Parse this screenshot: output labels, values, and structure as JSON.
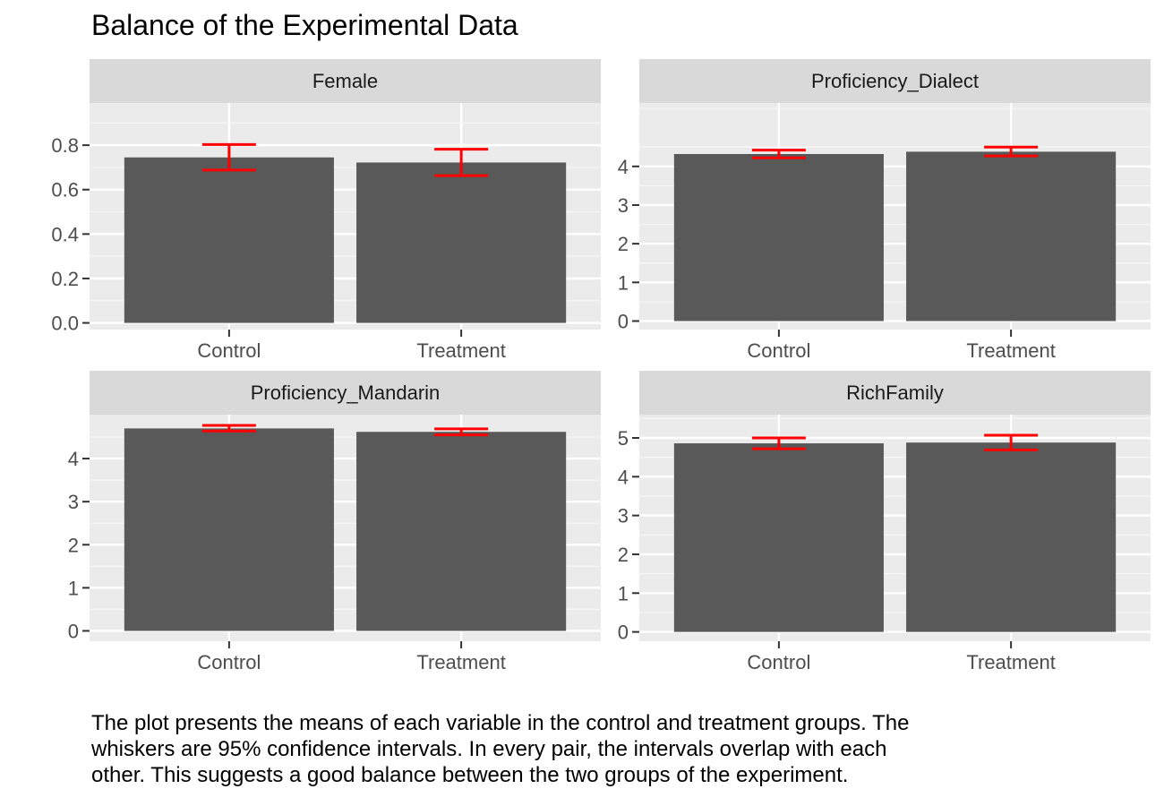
{
  "title": "Balance of the Experimental Data",
  "caption": [
    "The plot presents the means of each variable in the control and treatment groups. The",
    "whiskers are 95% confidence intervals. In every pair, the intervals overlap with each",
    "other. This suggests a good balance between the two groups of the experiment."
  ],
  "colors": {
    "bar": "#595959",
    "errorbar": "#ff0000",
    "panel": "#ebebeb",
    "strip": "#d9d9d9",
    "grid": "#ffffff"
  },
  "chart_data": [
    {
      "type": "bar",
      "panel": "Female",
      "categories": [
        "Control",
        "Treatment"
      ],
      "values": [
        0.745,
        0.722
      ],
      "ci_low": [
        0.688,
        0.663
      ],
      "ci_high": [
        0.803,
        0.782
      ],
      "ylim": [
        -0.03,
        0.99
      ],
      "yticks": [
        0,
        0.2,
        0.4,
        0.6,
        0.8
      ],
      "ytick_labels": [
        "0.0",
        "0.2",
        "0.4",
        "0.6",
        "0.8"
      ]
    },
    {
      "type": "bar",
      "panel": "Proficiency_Dialect",
      "categories": [
        "Control",
        "Treatment"
      ],
      "values": [
        4.32,
        4.38
      ],
      "ci_low": [
        4.22,
        4.27
      ],
      "ci_high": [
        4.42,
        4.5
      ],
      "ylim": [
        -0.22,
        5.64
      ],
      "yticks": [
        0,
        1,
        2,
        3,
        4
      ],
      "ytick_labels": [
        "0",
        "1",
        "2",
        "3",
        "4"
      ]
    },
    {
      "type": "bar",
      "panel": "Proficiency_Mandarin",
      "categories": [
        "Control",
        "Treatment"
      ],
      "values": [
        4.7,
        4.62
      ],
      "ci_low": [
        4.64,
        4.55
      ],
      "ci_high": [
        4.77,
        4.69
      ],
      "ylim": [
        -0.24,
        5.02
      ],
      "yticks": [
        0,
        1,
        2,
        3,
        4
      ],
      "ytick_labels": [
        "0",
        "1",
        "2",
        "3",
        "4"
      ]
    },
    {
      "type": "bar",
      "panel": "RichFamily",
      "categories": [
        "Control",
        "Treatment"
      ],
      "values": [
        4.86,
        4.88
      ],
      "ci_low": [
        4.72,
        4.69
      ],
      "ci_high": [
        5.0,
        5.07
      ],
      "ylim": [
        -0.24,
        5.6
      ],
      "yticks": [
        0,
        1,
        2,
        3,
        4,
        5
      ],
      "ytick_labels": [
        "0",
        "1",
        "2",
        "3",
        "4",
        "5"
      ]
    }
  ]
}
